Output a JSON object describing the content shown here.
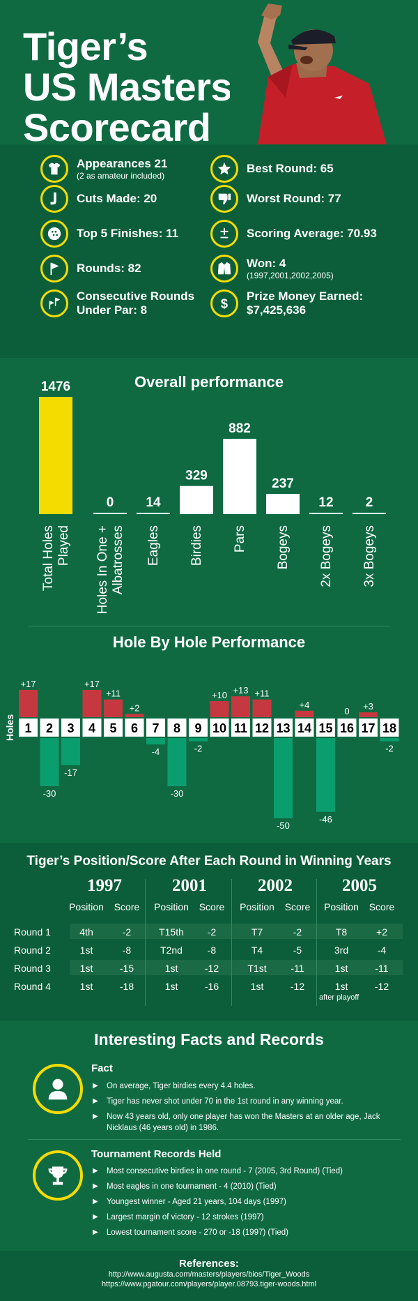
{
  "hero": {
    "title_lines": [
      "Tiger’s",
      "US Masters",
      "Scorecard"
    ]
  },
  "stats": {
    "left": [
      {
        "icon": "shirt-icon",
        "label": "Appearances 21",
        "sub": "(2 as amateur included)"
      },
      {
        "icon": "golf-club-icon",
        "label": "Cuts Made: 20",
        "sub": ""
      },
      {
        "icon": "golf-ball-icon",
        "label": "Top 5 Finishes: 11",
        "sub": ""
      },
      {
        "icon": "flag-icon",
        "label": "Rounds: 82",
        "sub": ""
      },
      {
        "icon": "flags-icon",
        "label": "Consecutive Rounds Under Par: 8",
        "sub": ""
      }
    ],
    "right": [
      {
        "icon": "star-icon",
        "label": "Best Round: 65",
        "sub": ""
      },
      {
        "icon": "thumbs-down-icon",
        "label": "Worst Round: 77",
        "sub": ""
      },
      {
        "icon": "plus-minus-icon",
        "label": "Scoring Average: 70.93",
        "sub": ""
      },
      {
        "icon": "jacket-icon",
        "label": "Won: 4",
        "sub": "(1997,2001,2002,2005)"
      },
      {
        "icon": "dollar-icon",
        "label": "Prize Money Earned: $7,425,636",
        "sub": ""
      }
    ]
  },
  "overall": {
    "title": "Overall performance",
    "categories": [
      "Total Holes Played",
      "Holes In One + Albatrosses",
      "Eagles",
      "Birdies",
      "Pars",
      "Bogeys",
      "2x Bogeys",
      "3x Bogeys"
    ],
    "values": [
      "1476",
      "0",
      "14",
      "329",
      "882",
      "237",
      "12",
      "2"
    ]
  },
  "hole_by_hole": {
    "title": "Hole By Hole Performance",
    "axis_label": "Holes",
    "holes": [
      "1",
      "2",
      "3",
      "4",
      "5",
      "6",
      "7",
      "8",
      "9",
      "10",
      "11",
      "12",
      "13",
      "14",
      "15",
      "16",
      "17",
      "18"
    ],
    "labels": [
      "+17",
      "-30",
      "-17",
      "+17",
      "+11",
      "+2",
      "-4",
      "-30",
      "-2",
      "+10",
      "+13",
      "+11",
      "-50",
      "+4",
      "-46",
      "0",
      "+3",
      "-2"
    ],
    "values": [
      17,
      -30,
      -17,
      17,
      11,
      2,
      -4,
      -30,
      -2,
      10,
      13,
      11,
      -50,
      4,
      -46,
      0,
      3,
      -2
    ]
  },
  "positions": {
    "title": "Tiger’s Position/Score After Each Round in Winning Years",
    "years": [
      "1997",
      "2001",
      "2002",
      "2005"
    ],
    "col_position": "Position",
    "col_score": "Score",
    "rows": [
      "Round 1",
      "Round 2",
      "Round 3",
      "Round 4"
    ],
    "data": [
      [
        [
          "4th",
          "-2"
        ],
        [
          "T15th",
          "-2"
        ],
        [
          "T7",
          "-2"
        ],
        [
          "T8",
          "+2"
        ]
      ],
      [
        [
          "1st",
          "-8"
        ],
        [
          "T2nd",
          "-8"
        ],
        [
          "T4",
          "-5"
        ],
        [
          "3rd",
          "-4"
        ]
      ],
      [
        [
          "1st",
          "-15"
        ],
        [
          "1st",
          "-12"
        ],
        [
          "T1st",
          "-11"
        ],
        [
          "1st",
          "-11"
        ]
      ],
      [
        [
          "1st",
          "-18"
        ],
        [
          "1st",
          "-16"
        ],
        [
          "1st",
          "-12"
        ],
        [
          "1st",
          "-12"
        ]
      ]
    ],
    "note": "after playoff"
  },
  "facts": {
    "title": "Interesting Facts and Records",
    "fact_heading": "Fact",
    "fact_items": [
      "On average, Tiger birdies every 4.4 holes.",
      "Tiger has never shot under 70 in the 1st round in any winning year.",
      "Now 43 years old, only one player has won the Masters at an older age, Jack Nicklaus (46 years old) in 1986."
    ],
    "records_heading": "Tournament Records Held",
    "record_items": [
      "Most consecutive birdies in one round - 7 (2005, 3rd Round) (Tied)",
      "Most eagles in one tournament - 4 (2010) (Tied)",
      "Youngest winner - Aged 21 years, 104 days (1997)",
      "Largest margin of victory - 12 strokes (1997)",
      "Lowest tournament score - 270 or -18 (1997) (Tied)"
    ]
  },
  "references": {
    "title": "References:",
    "lines": [
      "http://www.augusta.com/masters/players/bios/Tiger_Woods",
      "https://www.pgatour.com/players/player.08793.tiger-woods.html"
    ]
  },
  "colors": {
    "green": "#0f6a42",
    "dark_green": "#0b5e39",
    "yellow": "#f5dc00",
    "red_bar": "#c5383f",
    "teal_bar": "#0a9d6d"
  }
}
